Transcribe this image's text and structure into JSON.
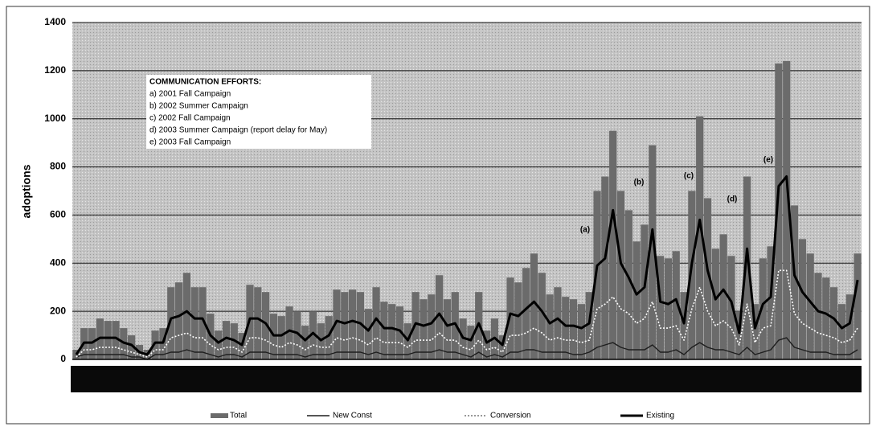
{
  "chart_data": {
    "type": "bar",
    "y_label": "adoptions",
    "note_title": "COMMUNICATION EFFORTS:",
    "notes": [
      "a) 2001 Fall Campaign",
      "b) 2002 Summer Campaign",
      "c) 2002 Fall Campaign",
      "d) 2003 Summer Campaign (report delay for May)",
      "e) 2003 Fall Campaign"
    ],
    "annotations": [
      "(a)",
      "(b)",
      "(c)",
      "(d)",
      "(e)"
    ],
    "categories": [
      null,
      null,
      null,
      null,
      null,
      null,
      null,
      null,
      null,
      null,
      null,
      null,
      null,
      null,
      null,
      null,
      null,
      null,
      null,
      null,
      null,
      null,
      null,
      null,
      null,
      null,
      null,
      null,
      null,
      null,
      null,
      null,
      null,
      null,
      null,
      null,
      null,
      null,
      null,
      null,
      null,
      null,
      null,
      null,
      null,
      null,
      null,
      null,
      null,
      null,
      null,
      null,
      null,
      null,
      null,
      null,
      null,
      null,
      null,
      null,
      null,
      null,
      null,
      null,
      null,
      null,
      null,
      null,
      null,
      null,
      null,
      null,
      null,
      null,
      null,
      null,
      null,
      null,
      null,
      null,
      null,
      null,
      null,
      null,
      null,
      null,
      null,
      null,
      null,
      null,
      null,
      null,
      null,
      null,
      null,
      null,
      null,
      null,
      null,
      null
    ],
    "series": [
      {
        "name": "Total",
        "type": "bar",
        "color": "#6b6b6b",
        "values": [
          40,
          130,
          130,
          170,
          160,
          160,
          130,
          100,
          60,
          40,
          120,
          130,
          300,
          320,
          360,
          300,
          300,
          190,
          120,
          160,
          150,
          110,
          310,
          300,
          280,
          190,
          180,
          220,
          200,
          140,
          200,
          150,
          180,
          290,
          280,
          290,
          280,
          210,
          300,
          240,
          230,
          220,
          150,
          280,
          250,
          270,
          350,
          250,
          280,
          170,
          140,
          280,
          120,
          170,
          100,
          340,
          320,
          380,
          440,
          360,
          270,
          300,
          260,
          250,
          230,
          280,
          700,
          760,
          950,
          700,
          620,
          490,
          560,
          890,
          430,
          420,
          450,
          280,
          700,
          1010,
          670,
          460,
          520,
          430,
          200,
          760,
          230,
          420,
          470,
          1230,
          1240,
          640,
          500,
          440,
          360,
          340,
          300,
          230,
          270,
          440
        ]
      },
      {
        "name": "New Const",
        "type": "line",
        "style": "solid",
        "color": "#1e1e1e",
        "values": [
          10,
          20,
          20,
          20,
          20,
          20,
          20,
          10,
          10,
          0,
          20,
          20,
          30,
          30,
          40,
          30,
          30,
          20,
          10,
          20,
          20,
          10,
          30,
          30,
          30,
          20,
          20,
          20,
          20,
          10,
          20,
          20,
          20,
          30,
          30,
          30,
          30,
          20,
          30,
          20,
          20,
          20,
          20,
          30,
          30,
          30,
          40,
          30,
          30,
          20,
          10,
          30,
          10,
          20,
          10,
          30,
          30,
          40,
          40,
          30,
          30,
          30,
          30,
          20,
          20,
          30,
          50,
          60,
          70,
          50,
          40,
          40,
          40,
          60,
          30,
          30,
          40,
          20,
          50,
          70,
          50,
          40,
          40,
          30,
          20,
          50,
          20,
          30,
          40,
          80,
          90,
          50,
          40,
          30,
          30,
          30,
          20,
          20,
          20,
          40
        ]
      },
      {
        "name": "Conversion",
        "type": "line",
        "style": "dotted",
        "color": "#ffffff",
        "values": [
          10,
          40,
          40,
          50,
          50,
          50,
          40,
          30,
          20,
          10,
          40,
          40,
          90,
          100,
          110,
          90,
          90,
          60,
          40,
          50,
          50,
          30,
          90,
          90,
          80,
          60,
          50,
          70,
          60,
          40,
          60,
          50,
          50,
          90,
          80,
          90,
          80,
          60,
          90,
          70,
          70,
          70,
          50,
          80,
          80,
          80,
          110,
          80,
          80,
          50,
          40,
          80,
          40,
          50,
          30,
          100,
          100,
          110,
          130,
          110,
          80,
          90,
          80,
          80,
          70,
          80,
          210,
          230,
          260,
          210,
          190,
          150,
          170,
          240,
          130,
          130,
          140,
          80,
          210,
          300,
          200,
          140,
          160,
          130,
          60,
          230,
          70,
          130,
          140,
          370,
          370,
          190,
          150,
          130,
          110,
          100,
          90,
          70,
          80,
          130
        ]
      },
      {
        "name": "Existing",
        "type": "line",
        "style": "thick",
        "color": "#000000",
        "values": [
          20,
          70,
          70,
          90,
          90,
          90,
          70,
          60,
          30,
          20,
          70,
          70,
          170,
          180,
          200,
          170,
          170,
          100,
          70,
          90,
          80,
          60,
          170,
          170,
          150,
          100,
          100,
          120,
          110,
          80,
          110,
          80,
          100,
          160,
          150,
          160,
          150,
          120,
          170,
          130,
          130,
          120,
          80,
          150,
          140,
          150,
          190,
          140,
          150,
          90,
          80,
          150,
          70,
          90,
          60,
          190,
          180,
          210,
          240,
          200,
          150,
          170,
          140,
          140,
          130,
          150,
          390,
          420,
          620,
          400,
          340,
          270,
          300,
          540,
          240,
          230,
          250,
          150,
          400,
          580,
          370,
          250,
          290,
          240,
          110,
          460,
          130,
          230,
          260,
          720,
          760,
          350,
          280,
          240,
          200,
          190,
          170,
          130,
          150,
          330
        ]
      }
    ],
    "ylim": [
      0,
      1400
    ],
    "yticks": [
      0,
      200,
      400,
      600,
      800,
      1000,
      1200,
      1400
    ],
    "grid": true,
    "legend": "bottom"
  }
}
